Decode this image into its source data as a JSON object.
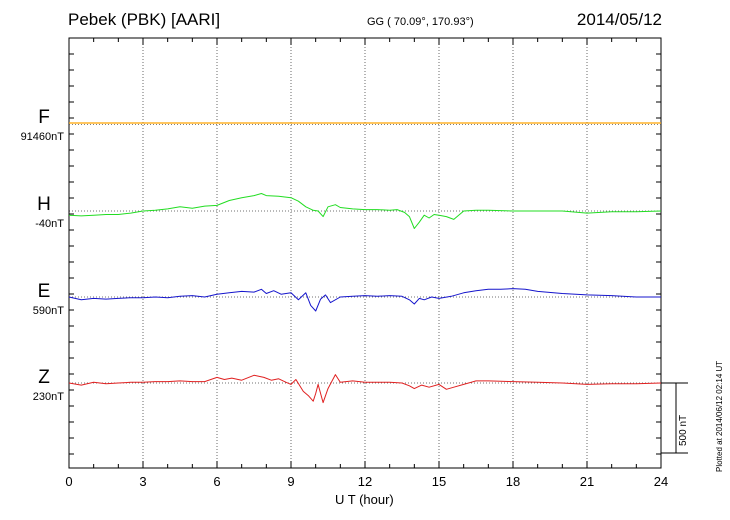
{
  "header": {
    "station": "Pebek (PBK)  [AARI]",
    "coords": "GG ( 70.09°, 170.93°)",
    "date": "2014/05/12"
  },
  "xaxis": {
    "label": "U T (hour)",
    "ticks": [
      "0",
      "3",
      "6",
      "9",
      "12",
      "15",
      "18",
      "21",
      "24"
    ]
  },
  "scale_label": "500 nT",
  "plotted_note": "Plotted at 2014/06/12 02:14 UT",
  "components": [
    {
      "name": "F",
      "baseline": "91460nT",
      "color": "#FFA500"
    },
    {
      "name": "H",
      "baseline": "-40nT",
      "color": "#22DD22"
    },
    {
      "name": "E",
      "baseline": "590nT",
      "color": "#1515CC"
    },
    {
      "name": "Z",
      "baseline": "230nT",
      "color": "#E02020"
    }
  ],
  "chart_data": {
    "type": "line",
    "title": "Pebek (PBK)  [AARI]",
    "xlabel": "U T (hour)",
    "xlim": [
      0,
      24
    ],
    "x_ticks": [
      0,
      3,
      6,
      9,
      12,
      15,
      18,
      21,
      24
    ],
    "grid": true,
    "y_unit": "nT",
    "scale_bar_nT": 500,
    "series": [
      {
        "name": "F",
        "baseline_nT": 91460,
        "x": [
          0,
          24
        ],
        "y": [
          0,
          0
        ]
      },
      {
        "name": "H",
        "baseline_nT": -40,
        "x": [
          0,
          0.5,
          1,
          1.5,
          2,
          2.5,
          3,
          3.5,
          4,
          4.5,
          5,
          5.5,
          6,
          6.5,
          7,
          7.5,
          7.8,
          8,
          8.5,
          9,
          9.3,
          9.6,
          9.9,
          10.1,
          10.3,
          10.5,
          10.8,
          11,
          11.5,
          12,
          12.5,
          13,
          13.3,
          13.6,
          13.8,
          14,
          14.2,
          14.4,
          14.6,
          14.8,
          15,
          15.3,
          15.6,
          16,
          16.5,
          17,
          18,
          19,
          20,
          21,
          22,
          23,
          24
        ],
        "y": [
          -30,
          -35,
          -30,
          -25,
          -25,
          -15,
          0,
          5,
          15,
          30,
          20,
          35,
          40,
          75,
          95,
          110,
          125,
          110,
          105,
          95,
          70,
          30,
          5,
          0,
          -40,
          30,
          45,
          25,
          15,
          10,
          10,
          5,
          10,
          -10,
          -40,
          -125,
          -80,
          -30,
          -50,
          -25,
          -30,
          -40,
          -60,
          0,
          5,
          5,
          0,
          0,
          0,
          -15,
          -5,
          -5,
          0
        ]
      },
      {
        "name": "E",
        "baseline_nT": 590,
        "x": [
          0,
          0.5,
          1,
          1.5,
          2,
          2.5,
          3,
          3.5,
          4,
          4.5,
          5,
          5.5,
          6,
          6.5,
          7,
          7.5,
          7.8,
          8,
          8.3,
          8.6,
          9,
          9.3,
          9.6,
          9.8,
          10,
          10.2,
          10.4,
          10.6,
          11,
          11.5,
          12,
          12.5,
          13,
          13.5,
          13.8,
          14,
          14.2,
          14.4,
          14.7,
          15,
          15.5,
          16,
          16.5,
          17,
          17.5,
          18,
          18.5,
          19,
          20,
          21,
          22,
          23,
          24
        ],
        "y": [
          0,
          -20,
          -10,
          -15,
          -10,
          -5,
          -5,
          0,
          -5,
          5,
          10,
          0,
          20,
          30,
          40,
          35,
          55,
          25,
          45,
          20,
          30,
          -20,
          30,
          -60,
          -100,
          -15,
          15,
          -40,
          0,
          5,
          10,
          5,
          10,
          5,
          -20,
          -50,
          -10,
          -20,
          0,
          -10,
          5,
          30,
          45,
          55,
          55,
          60,
          55,
          40,
          25,
          15,
          10,
          0,
          0
        ]
      },
      {
        "name": "Z",
        "baseline_nT": 230,
        "x": [
          0,
          0.5,
          1,
          1.5,
          2,
          2.5,
          3,
          3.5,
          4,
          4.5,
          5,
          5.5,
          6,
          6.3,
          6.6,
          7,
          7.5,
          7.9,
          8.2,
          8.5,
          8.8,
          9,
          9.2,
          9.5,
          9.7,
          9.9,
          10,
          10.1,
          10.3,
          10.5,
          10.8,
          11,
          11.5,
          12,
          12.5,
          13,
          13.5,
          13.8,
          14,
          14.3,
          14.6,
          15,
          15.3,
          15.6,
          16,
          16.5,
          17,
          18,
          19,
          20,
          21,
          22,
          23,
          24
        ],
        "y": [
          0,
          -15,
          5,
          -5,
          0,
          5,
          5,
          10,
          10,
          15,
          10,
          10,
          40,
          25,
          35,
          20,
          55,
          40,
          20,
          30,
          5,
          -10,
          25,
          -60,
          -90,
          -130,
          -75,
          -10,
          -140,
          -40,
          60,
          5,
          15,
          5,
          5,
          5,
          0,
          -20,
          -40,
          -15,
          -30,
          -10,
          -45,
          -30,
          -10,
          15,
          15,
          10,
          5,
          0,
          -10,
          -5,
          -5,
          0
        ]
      }
    ]
  }
}
